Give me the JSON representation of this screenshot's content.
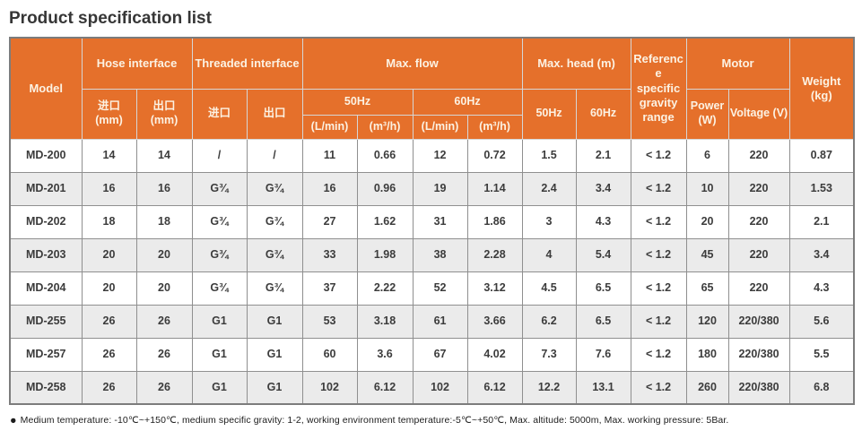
{
  "title": "Product specification list",
  "colors": {
    "header_bg": "#E5702B",
    "header_text": "#FCF2E3",
    "row_alt_bg": "#EBEBEB",
    "grid_border": "#8F8F8F",
    "outer_border": "#7C7C7C",
    "body_text": "#3C3C3C"
  },
  "header": {
    "model": "Model",
    "hose_interface": "Hose interface",
    "threaded_interface": "Threaded interface",
    "max_flow": "Max. flow",
    "max_head": "Max. head (m)",
    "ref_gravity": "Reference specific gravity range",
    "motor": "Motor",
    "weight": "Weight (kg)",
    "hose_inlet": "进口 (mm)",
    "hose_outlet": "出口 (mm)",
    "thread_inlet": "进口",
    "thread_outlet": "出口",
    "flow_50hz": "50Hz",
    "flow_60hz": "60Hz",
    "flow_lmin_50": "(L/min)",
    "flow_m3h_50": "(m³/h)",
    "flow_lmin_60": "(L/min)",
    "flow_m3h_60": "(m³/h)",
    "head_50hz": "50Hz",
    "head_60hz": "60Hz",
    "power": "Power (W)",
    "voltage": "Voltage (V)"
  },
  "rows": [
    [
      "MD-200",
      "14",
      "14",
      "/",
      "/",
      "11",
      "0.66",
      "12",
      "0.72",
      "1.5",
      "2.1",
      "< 1.2",
      "6",
      "220",
      "0.87"
    ],
    [
      "MD-201",
      "16",
      "16",
      "G¾",
      "G¾",
      "16",
      "0.96",
      "19",
      "1.14",
      "2.4",
      "3.4",
      "< 1.2",
      "10",
      "220",
      "1.53"
    ],
    [
      "MD-202",
      "18",
      "18",
      "G¾",
      "G¾",
      "27",
      "1.62",
      "31",
      "1.86",
      "3",
      "4.3",
      "< 1.2",
      "20",
      "220",
      "2.1"
    ],
    [
      "MD-203",
      "20",
      "20",
      "G¾",
      "G¾",
      "33",
      "1.98",
      "38",
      "2.28",
      "4",
      "5.4",
      "< 1.2",
      "45",
      "220",
      "3.4"
    ],
    [
      "MD-204",
      "20",
      "20",
      "G¾",
      "G¾",
      "37",
      "2.22",
      "52",
      "3.12",
      "4.5",
      "6.5",
      "< 1.2",
      "65",
      "220",
      "4.3"
    ],
    [
      "MD-255",
      "26",
      "26",
      "G1",
      "G1",
      "53",
      "3.18",
      "61",
      "3.66",
      "6.2",
      "6.5",
      "< 1.2",
      "120",
      "220/380",
      "5.6"
    ],
    [
      "MD-257",
      "26",
      "26",
      "G1",
      "G1",
      "60",
      "3.6",
      "67",
      "4.02",
      "7.3",
      "7.6",
      "< 1.2",
      "180",
      "220/380",
      "5.5"
    ],
    [
      "MD-258",
      "26",
      "26",
      "G1",
      "G1",
      "102",
      "6.12",
      "102",
      "6.12",
      "12.2",
      "13.1",
      "< 1.2",
      "260",
      "220/380",
      "6.8"
    ]
  ],
  "footnote": {
    "bullet": "●",
    "text": "Medium temperature: -10℃~+150℃, medium specific gravity: 1-2, working environment temperature:-5℃~+50℃, Max. altitude: 5000m, Max. working pressure: 5Bar."
  }
}
